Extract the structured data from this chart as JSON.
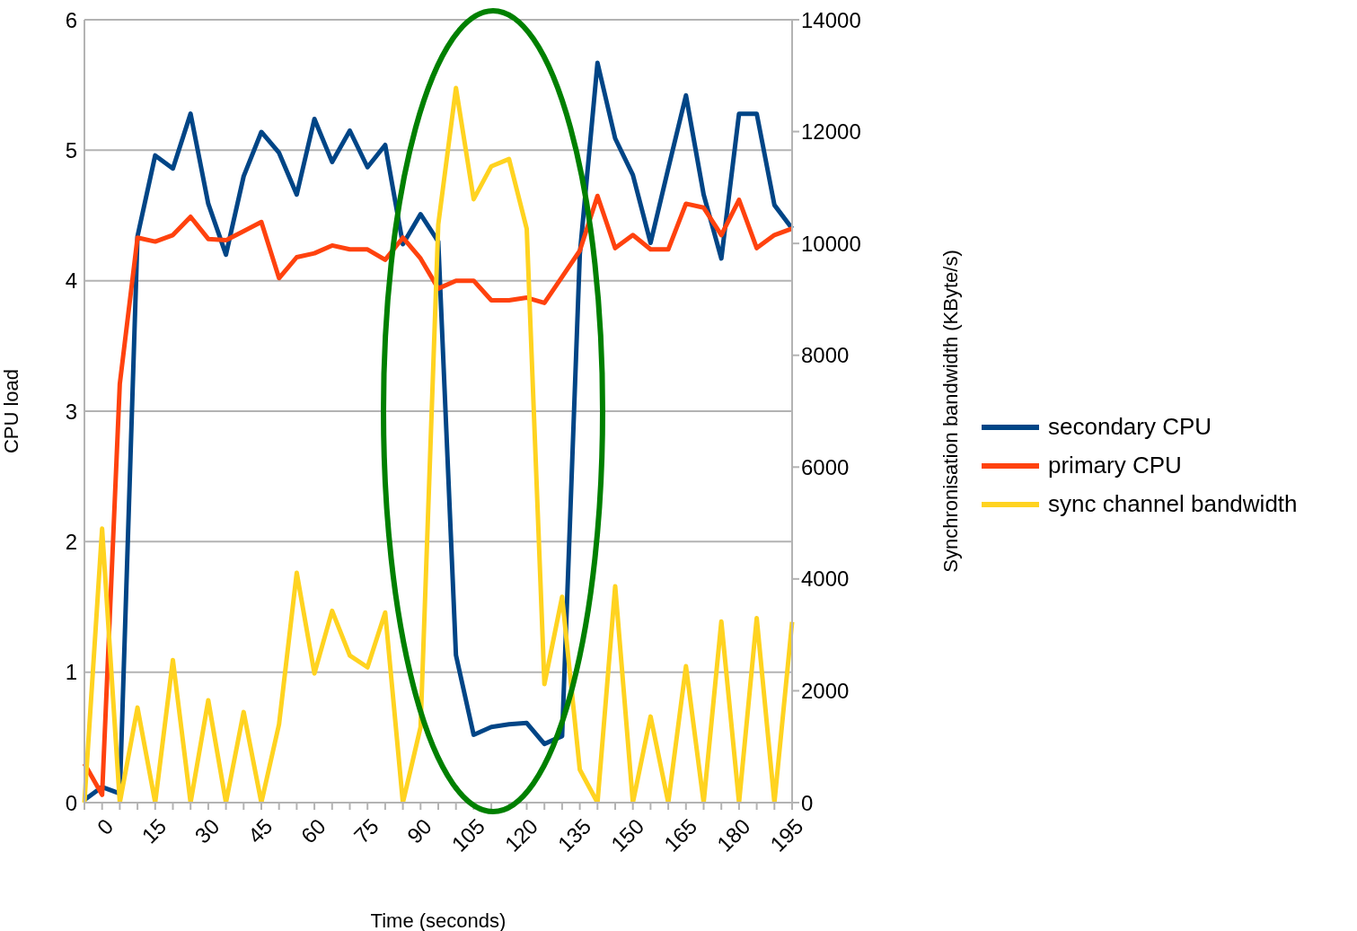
{
  "chart_data": {
    "type": "line",
    "xlabel": "Time (seconds)",
    "ylabel": "CPU load",
    "y2label": "Synchronisation bandwidth (KByte/s)",
    "categories": [
      null,
      "0",
      null,
      null,
      "15",
      null,
      null,
      "30",
      null,
      null,
      "45",
      null,
      null,
      "60",
      null,
      null,
      "75",
      null,
      null,
      "90",
      null,
      null,
      "105",
      null,
      null,
      "120",
      null,
      null,
      "135",
      null,
      null,
      "150",
      null,
      null,
      "165",
      null,
      null,
      "180",
      null,
      null,
      "195"
    ],
    "series": [
      {
        "name": "secondary CPU",
        "color": "#004586",
        "values": [
          0.02,
          0.12,
          0.07,
          4.34,
          4.96,
          4.86,
          5.28,
          4.59,
          4.2,
          4.8,
          5.14,
          4.98,
          4.66,
          5.24,
          4.91,
          5.15,
          4.87,
          5.04,
          4.28,
          4.51,
          4.3,
          1.13,
          0.52,
          0.58,
          0.6,
          0.61,
          0.45,
          0.51,
          4.2,
          5.67,
          5.09,
          4.81,
          4.29,
          4.86,
          5.42,
          4.66,
          4.17,
          5.28,
          5.28,
          4.58,
          4.4
        ]
      },
      {
        "name": "primary CPU",
        "color": "#ff420e",
        "values": [
          0.3,
          0.06,
          3.21,
          4.33,
          4.3,
          4.35,
          4.49,
          4.32,
          4.31,
          4.38,
          4.45,
          4.02,
          4.18,
          4.21,
          4.27,
          4.24,
          4.24,
          4.16,
          4.33,
          4.17,
          3.94,
          4.0,
          4.0,
          3.85,
          3.85,
          3.87,
          3.83,
          4.03,
          4.23,
          4.65,
          4.25,
          4.35,
          4.24,
          4.24,
          4.59,
          4.56,
          4.35,
          4.62,
          4.25,
          4.35,
          4.4
        ]
      },
      {
        "name": "sync channel bandwidth",
        "color": "#ffd320",
        "axis": "y2",
        "values": [
          0,
          4900,
          0,
          1700,
          0,
          2550,
          0,
          1830,
          0,
          1620,
          0,
          1400,
          4110,
          2310,
          3430,
          2630,
          2420,
          3400,
          0,
          1350,
          10340,
          12780,
          10790,
          11380,
          11510,
          10260,
          2120,
          3680,
          590,
          0,
          3870,
          0,
          1540,
          0,
          2440,
          0,
          3240,
          0,
          3300,
          0,
          3230
        ]
      }
    ],
    "ylim": [
      0,
      6
    ],
    "yticks": [
      0,
      1,
      2,
      3,
      4,
      5,
      6
    ],
    "y2lim": [
      0,
      14000
    ],
    "y2ticks": [
      0,
      2000,
      4000,
      6000,
      8000,
      10000,
      12000,
      14000
    ],
    "grid": "y",
    "legend": "right",
    "line_style": "solid"
  }
}
